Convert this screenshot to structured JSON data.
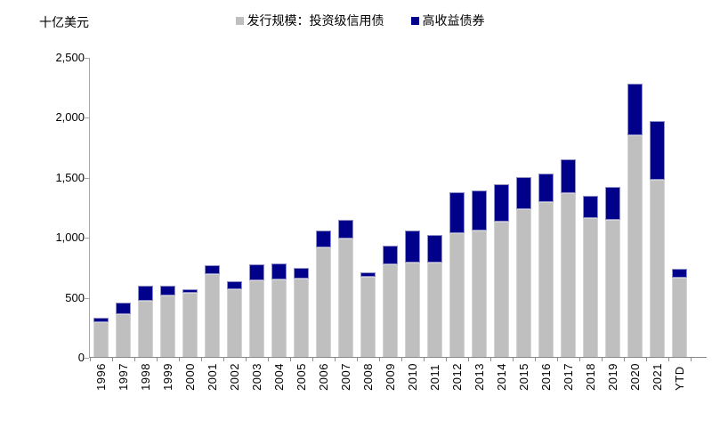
{
  "unit_label": "十亿美元",
  "legend": {
    "items": [
      {
        "label": "发行规模：投资级信用债",
        "color": "#bfbfbf"
      },
      {
        "label": "高收益债券",
        "color": "#00008b"
      }
    ]
  },
  "chart_data": {
    "type": "bar",
    "stacked": true,
    "title": "",
    "ylabel": "十亿美元",
    "xlabel": "",
    "ylim": [
      0,
      2500
    ],
    "ytick_step": 500,
    "ytick_labels": [
      "2,500",
      "2,000",
      "1,500",
      "1,000",
      "500",
      "0"
    ],
    "grid": false,
    "legend_position": "top-center",
    "categories": [
      "1996",
      "1997",
      "1998",
      "1999",
      "2000",
      "2001",
      "2002",
      "2003",
      "2004",
      "2005",
      "2006",
      "2007",
      "2008",
      "2009",
      "2010",
      "2011",
      "2012",
      "2013",
      "2014",
      "2015",
      "2016",
      "2017",
      "2018",
      "2019",
      "2020",
      "2021",
      "YTD"
    ],
    "series": [
      {
        "name": "发行规模：投资级信用债",
        "color": "#bfbfbf",
        "values": [
          290,
          355,
          470,
          515,
          535,
          690,
          565,
          635,
          645,
          655,
          910,
          990,
          665,
          775,
          790,
          785,
          1030,
          1050,
          1130,
          1230,
          1290,
          1365,
          1160,
          1145,
          1850,
          1480,
          660
        ]
      },
      {
        "name": "高收益债券",
        "color": "#00008b",
        "values": [
          40,
          95,
          120,
          80,
          30,
          75,
          65,
          135,
          135,
          90,
          145,
          150,
          40,
          155,
          265,
          235,
          340,
          335,
          310,
          265,
          240,
          285,
          180,
          270,
          430,
          485,
          75
        ]
      }
    ]
  }
}
